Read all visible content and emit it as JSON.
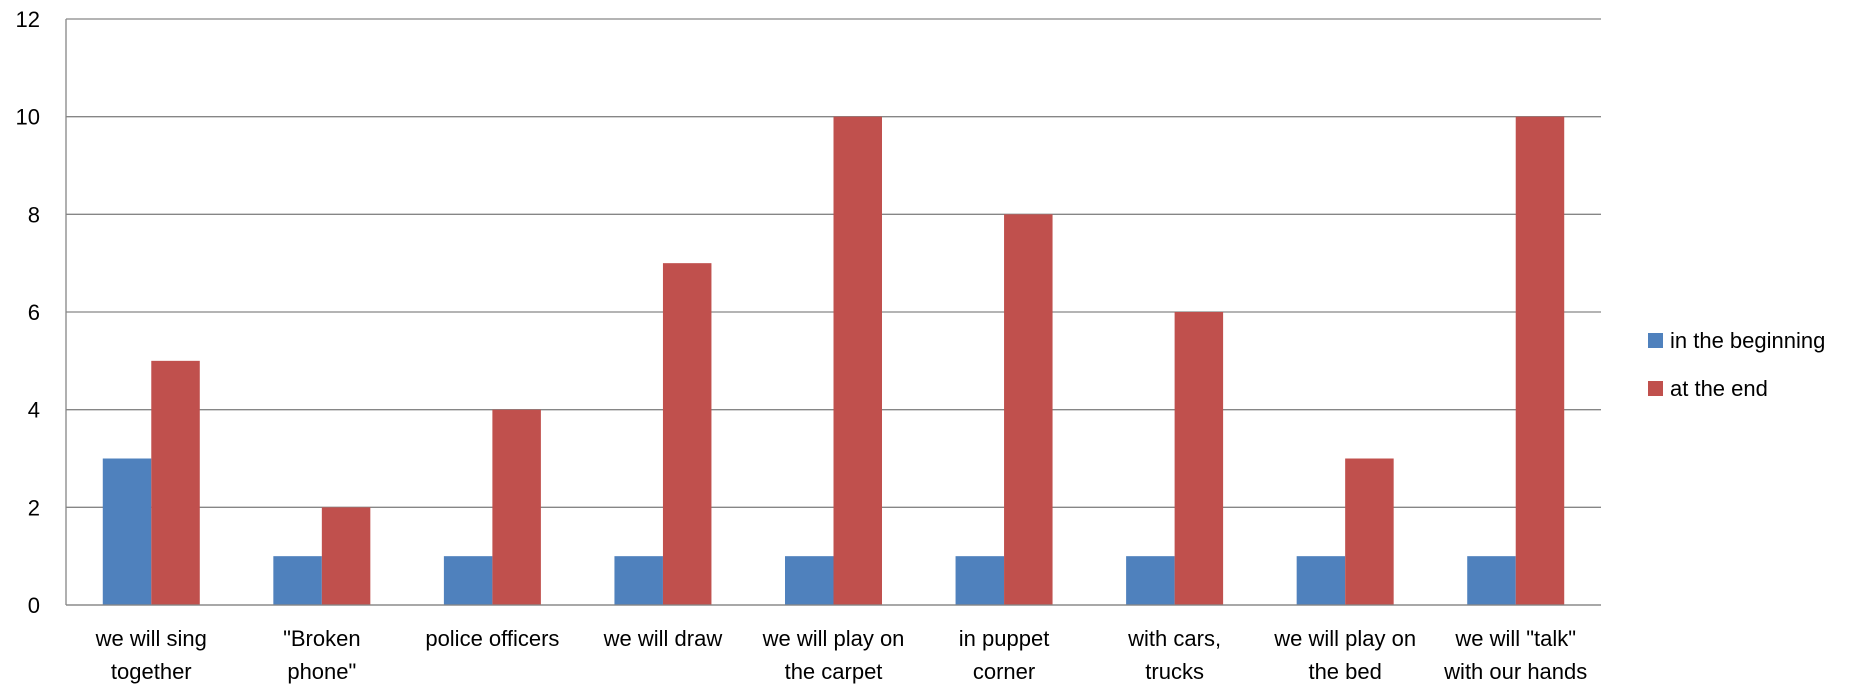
{
  "chart_data": {
    "type": "bar",
    "categories": [
      [
        "we will sing",
        "together"
      ],
      [
        "\"Broken",
        "phone\""
      ],
      [
        "police officers"
      ],
      [
        "we will draw"
      ],
      [
        "we will play on",
        "the carpet"
      ],
      [
        "in puppet",
        "corner"
      ],
      [
        "with cars,",
        "trucks"
      ],
      [
        "we will play on",
        "the bed"
      ],
      [
        "we will \"talk\"",
        "with our hands"
      ]
    ],
    "series": [
      {
        "name": "in the beginning",
        "color": "#4F81BD",
        "values": [
          3,
          1,
          1,
          1,
          1,
          1,
          1,
          1,
          1
        ]
      },
      {
        "name": "at the end",
        "color": "#C0504D",
        "values": [
          5,
          2,
          4,
          7,
          10,
          8,
          6,
          3,
          10
        ]
      }
    ],
    "ylim": [
      0,
      12
    ],
    "yticks": [
      "0",
      "2",
      "4",
      "6",
      "8",
      "10",
      "12"
    ],
    "grid": true,
    "legend_position": "right"
  }
}
